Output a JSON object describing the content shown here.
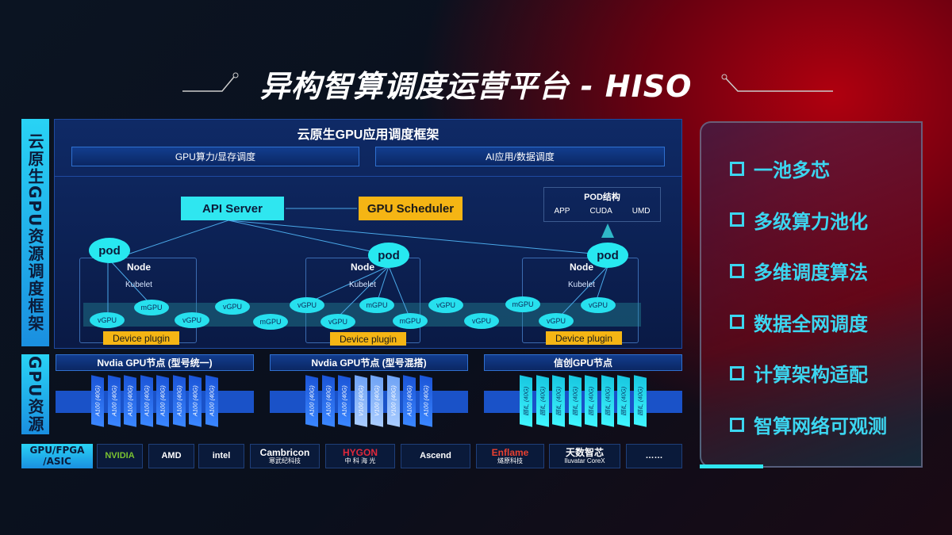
{
  "title": "异构智算调度运营平台 - HISO",
  "left_labels": {
    "framework": "云原生GPU资源调度框架",
    "resources": "GPU资源",
    "chips": "GPU/FPGA /ASIC"
  },
  "framework": {
    "header": "云原生GPU应用调度框架",
    "sub": [
      "GPU算力/显存调度",
      "AI应用/数据调度"
    ],
    "api_server": "API Server",
    "gpu_scheduler": "GPU Scheduler",
    "pod_struct": {
      "title": "POD结构",
      "items": [
        "APP",
        "CUDA",
        "UMD"
      ]
    },
    "pod": "pod",
    "node": "Node",
    "kubelet": "Kubelet",
    "device_plugin": "Device plugin",
    "vgpu": "vGPU",
    "mgpu": "mGPU"
  },
  "gpu_nodes": [
    {
      "title": "Nvdia GPU节点 (型号统一)",
      "cards": [
        "A100 (40G)",
        "A100 (40G)",
        "A100 (40G)",
        "A100 (40G)",
        "A100 (40G)",
        "A100 (40G)",
        "A100 (40G)",
        "A100 (40G)"
      ]
    },
    {
      "title": "Nvdia GPU节点 (型号混搭)",
      "cards": [
        "A100 (40G)",
        "A100 (40G)",
        "A100 (40G)",
        "V100 (40G)",
        "V100 (40G)",
        "V100 (40G)",
        "A100 (40G)",
        "A100 (40G)"
      ]
    },
    {
      "title": "信创GPU节点",
      "cards": [
        "国产 (40G)",
        "国产 (40G)",
        "国产 (40G)",
        "国产 (40G)",
        "国产 (40G)",
        "国产 (40G)",
        "国产 (40G)",
        "国产 (40G)"
      ]
    }
  ],
  "vendors": [
    {
      "name": "NVIDIA",
      "sub": ""
    },
    {
      "name": "AMD",
      "sub": ""
    },
    {
      "name": "intel",
      "sub": ""
    },
    {
      "name": "Cambricon",
      "sub": "寒武纪科技"
    },
    {
      "name": "HYGON",
      "sub": "中 科 海 光"
    },
    {
      "name": "Ascend",
      "sub": ""
    },
    {
      "name": "Enflame",
      "sub": "燧原科技"
    },
    {
      "name": "天数智芯",
      "sub": "Iluvatar CoreX"
    },
    {
      "name": "……",
      "sub": ""
    }
  ],
  "features": [
    "一池多芯",
    "多级算力池化",
    "多维调度算法",
    "数据全网调度",
    "计算架构适配",
    "智算网络可观测"
  ],
  "colors": {
    "cyan": "#2fe6f0",
    "orange": "#f5b514",
    "blue": "#0f2a66",
    "red": "#b0000f"
  }
}
